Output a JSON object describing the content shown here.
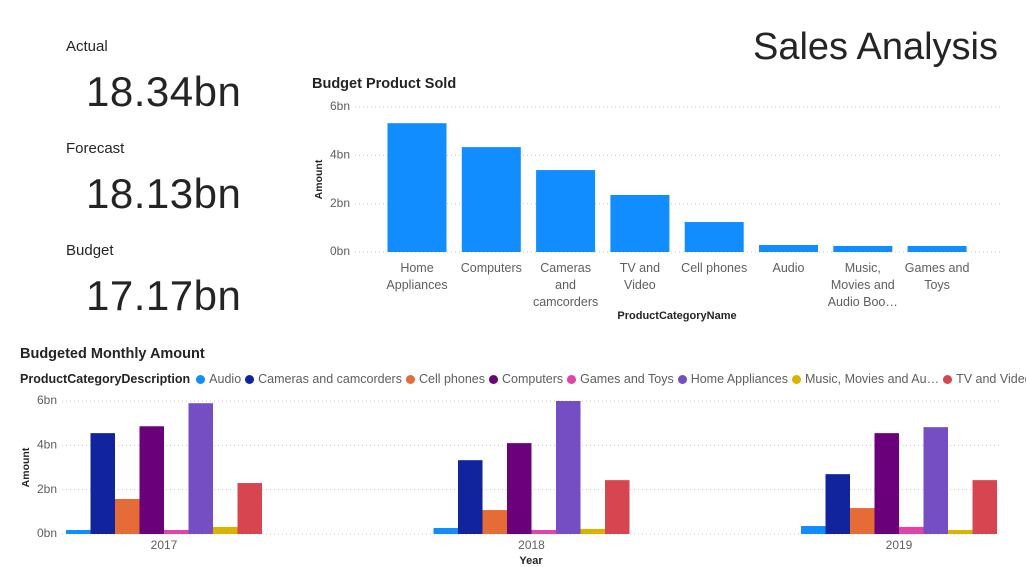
{
  "page_title": "Sales Analysis",
  "cards": [
    {
      "label": "Actual",
      "value": "18.34bn"
    },
    {
      "label": "Forecast",
      "value": "18.13bn"
    },
    {
      "label": "Budget",
      "value": "17.17bn"
    }
  ],
  "chart_data": [
    {
      "type": "bar",
      "title": "Budget Product Sold",
      "x_label": "ProductCategoryName",
      "y_label": "Amount",
      "categories": [
        "Home Appliances",
        "Computers",
        "Cameras and camcorders",
        "TV and Video",
        "Cell phones",
        "Audio",
        "Music, Movies and Audio Boo…",
        "Games and Toys"
      ],
      "values": [
        5.33,
        4.34,
        3.39,
        2.36,
        1.24,
        0.29,
        0.25,
        0.25
      ],
      "color": "#118dff",
      "ylim": [
        0,
        6
      ],
      "yticks": [
        {
          "value": 0,
          "label": "0bn"
        },
        {
          "value": 2,
          "label": "2bn"
        },
        {
          "value": 4,
          "label": "4bn"
        },
        {
          "value": 6,
          "label": "6bn"
        }
      ],
      "grid": true
    },
    {
      "type": "bar",
      "title": "Budgeted Monthly Amount",
      "legend_title": "ProductCategoryDescription",
      "x_label": "Year",
      "y_label": "Amount",
      "categories": [
        "2017",
        "2018",
        "2019"
      ],
      "series": [
        {
          "name": "Audio",
          "color": "#118dff",
          "values": [
            0.18,
            0.27,
            0.36
          ]
        },
        {
          "name": "Cameras and camcorders",
          "color": "#12239e",
          "values": [
            4.55,
            3.33,
            2.7
          ]
        },
        {
          "name": "Cell phones",
          "color": "#e66c37",
          "values": [
            1.58,
            1.08,
            1.17
          ]
        },
        {
          "name": "Computers",
          "color": "#6b007b",
          "values": [
            4.86,
            4.1,
            4.55
          ]
        },
        {
          "name": "Games and Toys",
          "color": "#e044a7",
          "values": [
            0.18,
            0.18,
            0.32
          ]
        },
        {
          "name": "Home Appliances",
          "color": "#744ec2",
          "values": [
            5.9,
            6.0,
            4.82
          ]
        },
        {
          "name": "Music, Movies and Au…",
          "color": "#d9b300",
          "values": [
            0.32,
            0.23,
            0.18
          ]
        },
        {
          "name": "TV and Video",
          "color": "#d64550",
          "values": [
            2.3,
            2.43,
            2.43
          ]
        }
      ],
      "ylim": [
        0,
        6
      ],
      "yticks": [
        {
          "value": 0,
          "label": "0bn"
        },
        {
          "value": 2,
          "label": "2bn"
        },
        {
          "value": 4,
          "label": "4bn"
        },
        {
          "value": 6,
          "label": "6bn"
        }
      ],
      "grid": true,
      "legend": "top"
    }
  ]
}
